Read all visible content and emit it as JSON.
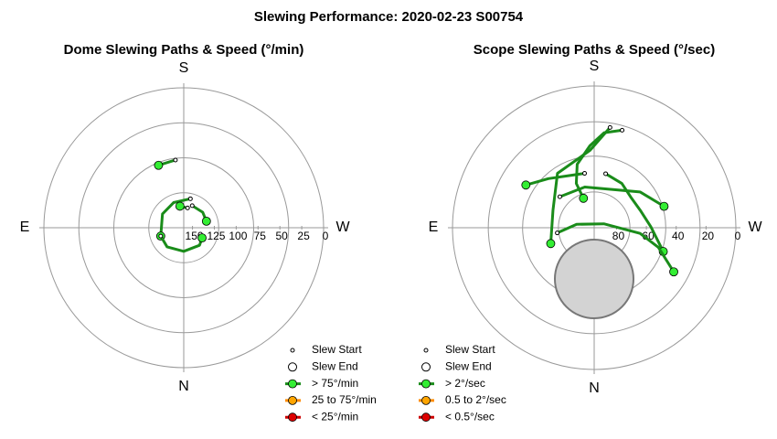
{
  "title": "Slewing Performance: 2020-02-23 S00754",
  "chart_data": [
    {
      "type": "polar",
      "title": "Dome Slewing Paths & Speed (°/min)",
      "compass": [
        "S",
        "W",
        "N",
        "E"
      ],
      "rlim": [
        0,
        160
      ],
      "rticks": [
        150,
        125,
        100,
        75,
        50,
        25,
        0
      ],
      "rgrid": [
        0,
        40,
        80,
        120
      ],
      "path_color": "#1a8c1a",
      "end_color": "#33ee33",
      "series": [
        {
          "az": [
            173,
            158
          ],
          "alt": [
            82,
            83
          ]
        },
        {
          "az": [
            193,
            158,
            123,
            70
          ],
          "alt": [
            126,
            129,
            131,
            132
          ]
        },
        {
          "az": [
            70,
            41,
            0,
            318,
            299
          ],
          "alt": [
            132,
            131,
            133,
            133,
            136
          ]
        },
        {
          "az": [
            201,
            231,
            254
          ],
          "alt": [
            133,
            132,
            133
          ]
        },
        {
          "az": [
            191,
            170
          ],
          "alt": [
            137,
            135
          ]
        }
      ],
      "legend": {
        "start": "Slew Start",
        "end": "Slew End",
        "speeds": [
          {
            "label": "> 75°/min",
            "color": "#1a8c1a",
            "fill": "#33ee33"
          },
          {
            "label": "25 to 75°/min",
            "color": "#ff8c00",
            "fill": "#ffa500"
          },
          {
            "label": "< 25°/min",
            "color": "#cc0000",
            "fill": "#dd0000"
          }
        ]
      }
    },
    {
      "type": "polar",
      "title": "Scope Slewing Paths & Speed (°/sec)",
      "compass": [
        "S",
        "W",
        "N",
        "E"
      ],
      "rlim": [
        0,
        95
      ],
      "rticks": [
        80,
        60,
        40,
        20,
        0
      ],
      "rgrid": [
        0,
        24,
        47,
        71
      ],
      "path_color": "#1a8c1a",
      "end_color": "#33ee33",
      "series": [
        {
          "az": [
            196,
            186,
            177,
            165,
            158,
            160
          ],
          "alt": [
            27,
            31,
            40,
            51,
            63,
            74
          ]
        },
        {
          "az": [
            192,
            212,
            230,
            249,
            269,
            289
          ],
          "alt": [
            58,
            60,
            63,
            62,
            57,
            46
          ]
        },
        {
          "az": [
            189,
            177,
            146,
            113,
            70
          ],
          "alt": [
            27,
            43,
            51,
            65,
            64
          ]
        },
        {
          "az": [
            170,
            137,
            122
          ],
          "alt": [
            58,
            50,
            41
          ]
        },
        {
          "az": [
            132,
            167,
            232,
            253
          ],
          "alt": [
            64,
            67,
            56,
            46
          ]
        },
        {
          "az": [
            82,
            101,
            248,
            277,
            287,
            299
          ],
          "alt": [
            70,
            83,
            88,
            64,
            50,
            34
          ]
        }
      ],
      "legend": {
        "start": "Slew Start",
        "end": "Slew End",
        "speeds": [
          {
            "label": "> 2°/sec",
            "color": "#1a8c1a",
            "fill": "#33ee33"
          },
          {
            "label": "0.5 to 2°/sec",
            "color": "#ff8c00",
            "fill": "#ffa500"
          },
          {
            "label": "< 0.5°/sec",
            "color": "#cc0000",
            "fill": "#dd0000"
          }
        ]
      }
    }
  ]
}
